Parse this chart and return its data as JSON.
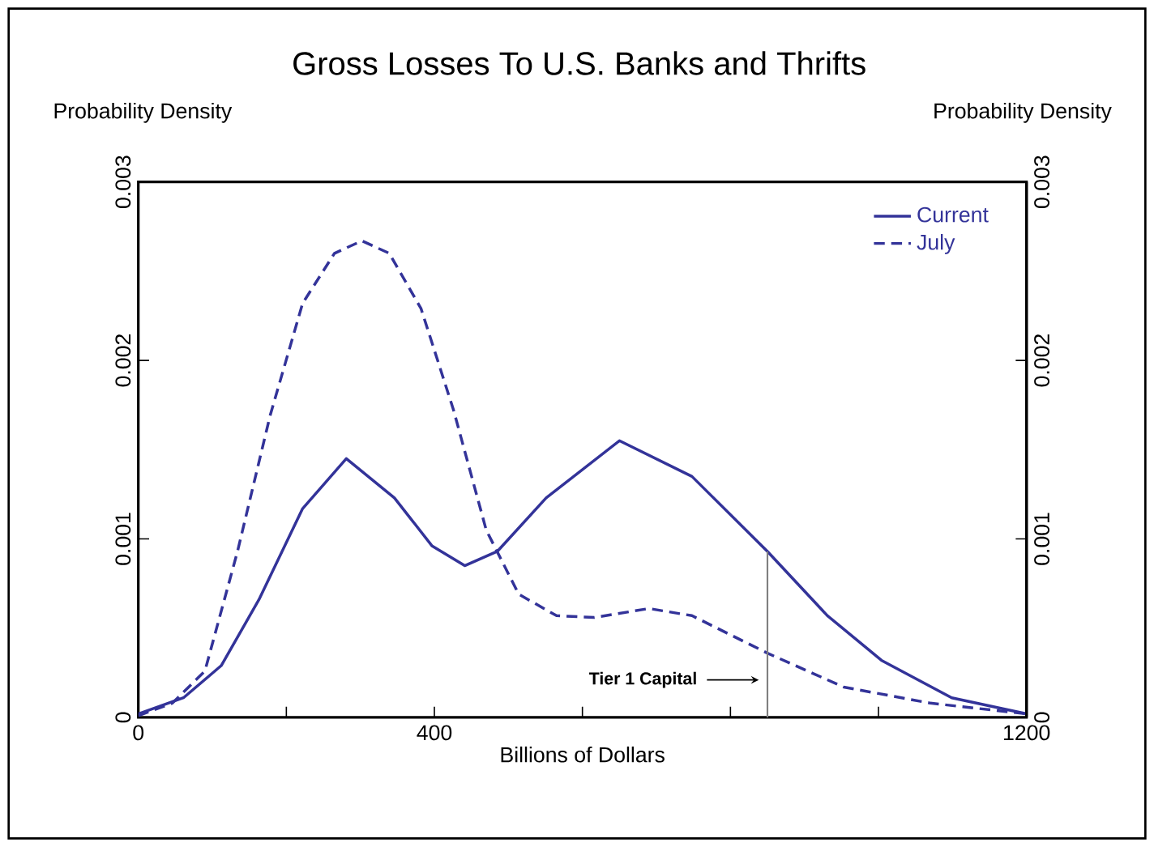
{
  "chart_data": {
    "type": "line",
    "title": "Gross Losses To U.S. Banks and Thrifts",
    "xlabel": "Billions of Dollars",
    "ylabel": "Probability Density",
    "y2label": "Probability Density",
    "xlim": [
      0,
      1200
    ],
    "xticks": [
      0,
      {
        "value": 200,
        "label": null
      },
      400,
      {
        "value": 600,
        "label": null
      },
      {
        "value": 800,
        "label": null
      },
      {
        "value": 1000,
        "label": null
      },
      1200
    ],
    "ylim": [
      0,
      0.003
    ],
    "yticks": [
      0,
      0.001,
      0.002,
      0.003
    ],
    "y2lim": [
      0,
      0.003
    ],
    "y2ticks": [
      0,
      0.001,
      0.002,
      0.003
    ],
    "legend": "top right",
    "grid": false,
    "series": [
      {
        "name": "Current",
        "color": "#333399",
        "line_style": "solid",
        "x": [
          0,
          61,
          112,
          163,
          222,
          281,
          346,
          397,
          441,
          485,
          551,
          650,
          748,
          850,
          931,
          1004,
          1099,
          1200
        ],
        "values": [
          2e-05,
          0.00011,
          0.00029,
          0.00066,
          0.00117,
          0.00145,
          0.00123,
          0.00096,
          0.00085,
          0.00093,
          0.00123,
          0.00155,
          0.00135,
          0.00093,
          0.00057,
          0.00032,
          0.00011,
          2e-05
        ]
      },
      {
        "name": "July",
        "color": "#333399",
        "line_style": "dashed",
        "x": [
          0,
          46,
          90,
          134,
          178,
          222,
          265,
          302,
          339,
          382,
          426,
          470,
          514,
          565,
          616,
          690,
          748,
          850,
          953,
          1070,
          1200
        ],
        "values": [
          1e-05,
          8e-05,
          0.00026,
          0.00093,
          0.00169,
          0.00232,
          0.0026,
          0.00267,
          0.0026,
          0.00229,
          0.00172,
          0.00105,
          0.00069,
          0.00057,
          0.00056,
          0.00061,
          0.00057,
          0.00036,
          0.00017,
          8e-05,
          2e-05
        ]
      }
    ],
    "ref_lines": [
      {
        "axis": "x",
        "value": 850,
        "label": "Tier 1 Capital",
        "color": "#808080"
      }
    ]
  }
}
